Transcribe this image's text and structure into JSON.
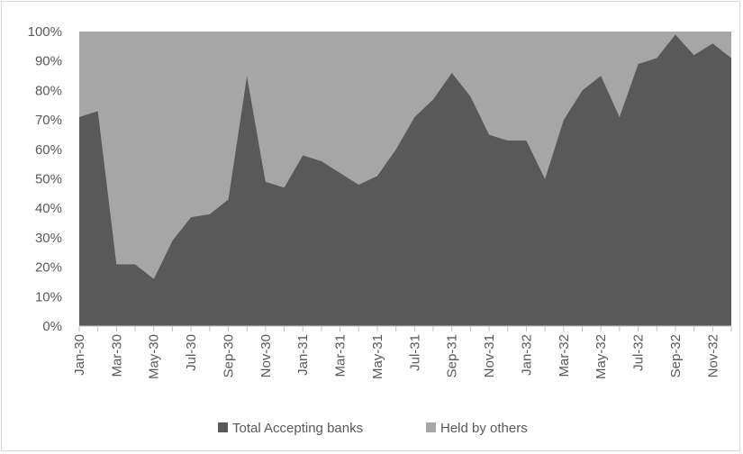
{
  "chart_data": {
    "type": "area",
    "stacked": true,
    "percent_stacked": true,
    "title": "",
    "xlabel": "",
    "ylabel": "",
    "ylim": [
      0,
      100
    ],
    "y_ticks": [
      "0%",
      "10%",
      "20%",
      "30%",
      "40%",
      "50%",
      "60%",
      "70%",
      "80%",
      "90%",
      "100%"
    ],
    "grid": false,
    "legend": "bottom",
    "x": [
      "Jan-30",
      "Feb-30",
      "Mar-30",
      "Apr-30",
      "May-30",
      "Jun-30",
      "Jul-30",
      "Aug-30",
      "Sep-30",
      "Oct-30",
      "Nov-30",
      "Dec-30",
      "Jan-31",
      "Feb-31",
      "Mar-31",
      "Apr-31",
      "May-31",
      "Jun-31",
      "Jul-31",
      "Aug-31",
      "Sep-31",
      "Oct-31",
      "Nov-31",
      "Dec-31",
      "Jan-32",
      "Feb-32",
      "Mar-32",
      "Apr-32",
      "May-32",
      "Jun-32",
      "Jul-32",
      "Aug-32",
      "Sep-32",
      "Oct-32",
      "Nov-32",
      "Dec-32"
    ],
    "x_tick_labels": [
      "Jan-30",
      "Mar-30",
      "May-30",
      "Jul-30",
      "Sep-30",
      "Nov-30",
      "Jan-31",
      "Mar-31",
      "May-31",
      "Jul-31",
      "Sep-31",
      "Nov-31",
      "Jan-32",
      "Mar-32",
      "May-32",
      "Jul-32",
      "Sep-32",
      "Nov-32"
    ],
    "series": [
      {
        "name": "Total Accepting banks",
        "color": "#595959",
        "values": [
          71,
          73,
          21,
          21,
          16,
          29,
          37,
          38,
          43,
          85,
          49,
          47,
          58,
          56,
          52,
          48,
          51,
          60,
          71,
          77,
          86,
          78,
          65,
          63,
          63,
          50,
          70,
          80,
          85,
          71,
          89,
          91,
          99,
          92,
          96,
          91
        ]
      },
      {
        "name": "Held by others",
        "color": "#a6a6a6",
        "values": [
          29,
          27,
          79,
          79,
          84,
          71,
          63,
          62,
          57,
          15,
          51,
          53,
          42,
          44,
          48,
          52,
          49,
          40,
          29,
          23,
          14,
          22,
          35,
          37,
          37,
          50,
          30,
          20,
          15,
          29,
          11,
          9,
          1,
          8,
          4,
          9
        ]
      }
    ]
  }
}
